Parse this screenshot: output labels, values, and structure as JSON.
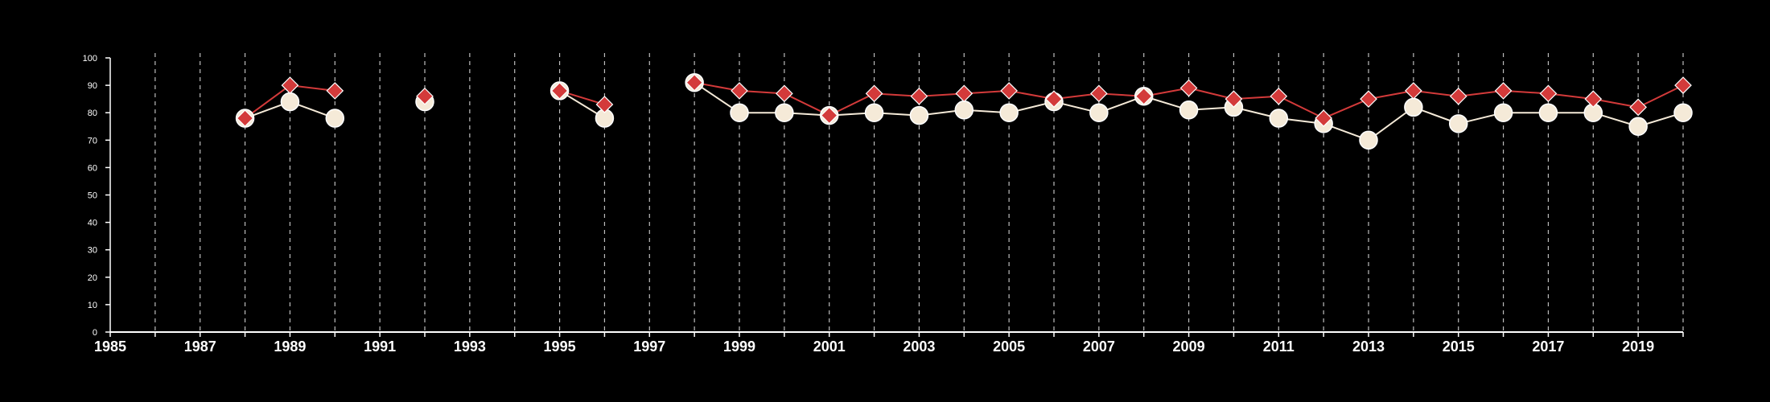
{
  "chart_data": {
    "type": "line",
    "title": "",
    "xlabel": "",
    "ylabel": "",
    "xlim": [
      1985,
      2020
    ],
    "ylim": [
      0,
      100
    ],
    "y_ticks": [
      0,
      10,
      20,
      30,
      40,
      50,
      60,
      70,
      80,
      90,
      100
    ],
    "x_tick_labels": [
      1985,
      1987,
      1989,
      1991,
      1993,
      1995,
      1997,
      1999,
      2001,
      2003,
      2005,
      2007,
      2009,
      2011,
      2013,
      2015,
      2017,
      2019
    ],
    "vertical_gridlines": "dashed, every year",
    "series": [
      {
        "color": "#d33a3a",
        "marker": "diamond",
        "x": [
          1988,
          1989,
          1990,
          1992,
          1995,
          1996,
          1998,
          1999,
          2000,
          2001,
          2002,
          2003,
          2004,
          2005,
          2006,
          2007,
          2008,
          2009,
          2010,
          2011,
          2012,
          2013,
          2014,
          2015,
          2016,
          2017,
          2018,
          2019,
          2020
        ],
        "values": [
          78,
          90,
          88,
          86,
          88,
          83,
          91,
          88,
          87,
          79,
          87,
          86,
          87,
          88,
          85,
          87,
          86,
          89,
          85,
          86,
          78,
          85,
          88,
          86,
          88,
          87,
          85,
          82,
          90
        ]
      },
      {
        "color": "#f5ead8",
        "marker": "circle",
        "x": [
          1988,
          1989,
          1990,
          1992,
          1995,
          1996,
          1998,
          1999,
          2000,
          2001,
          2002,
          2003,
          2004,
          2005,
          2006,
          2007,
          2008,
          2009,
          2010,
          2011,
          2012,
          2013,
          2014,
          2015,
          2016,
          2017,
          2018,
          2019,
          2020
        ],
        "values": [
          78,
          84,
          78,
          84,
          88,
          78,
          91,
          80,
          80,
          79,
          80,
          79,
          81,
          80,
          84,
          80,
          86,
          81,
          82,
          78,
          76,
          70,
          82,
          76,
          80,
          80,
          80,
          75,
          80
        ]
      }
    ]
  }
}
